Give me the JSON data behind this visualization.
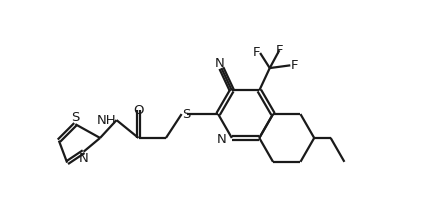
{
  "bg_color": "#ffffff",
  "line_color": "#1a1a1a",
  "line_width": 1.6,
  "font_size_label": 9.5,
  "figsize": [
    4.28,
    2.21
  ],
  "dpi": 100,
  "xlim": [
    -2.8,
    10.5
  ],
  "ylim": [
    -0.5,
    7.5
  ]
}
